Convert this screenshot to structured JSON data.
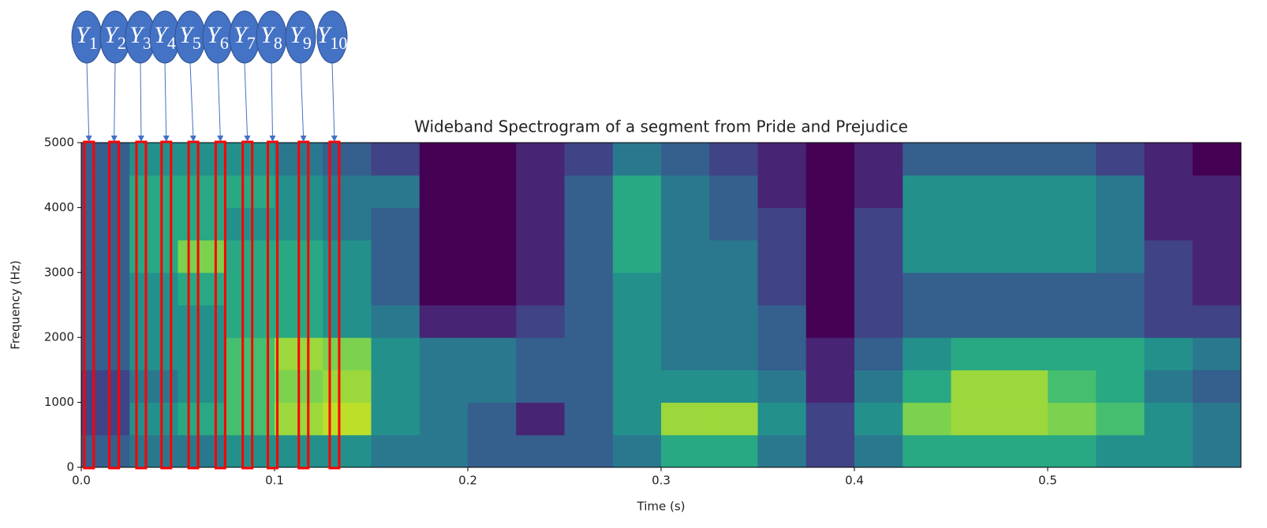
{
  "chart_data": {
    "type": "spectrogram",
    "title": "Wideband Spectrogram of a segment from Pride and Prejudice",
    "x_label": "Time (s)",
    "y_label": "Frequency (Hz)",
    "xlim": [
      0,
      0.6
    ],
    "ylim": [
      0,
      5000
    ],
    "xticks": [
      {
        "value": 0,
        "label": "0.0"
      },
      0.1,
      0.2,
      0.3,
      0.4,
      0.5
    ],
    "yticks": [
      0,
      1000,
      2000,
      3000,
      4000,
      5000
    ],
    "colormap": "viridis",
    "clim": [
      0,
      1
    ],
    "time_bins": [
      0,
      0.025,
      0.05,
      0.075,
      0.1,
      0.125,
      0.15,
      0.175,
      0.2,
      0.225,
      0.25,
      0.275,
      0.3,
      0.325,
      0.35,
      0.375,
      0.4,
      0.425,
      0.45,
      0.475,
      0.5,
      0.525,
      0.55,
      0.575,
      0.6
    ],
    "freq_bins": [
      0,
      500,
      1000,
      1500,
      2000,
      2500,
      3000,
      3500,
      4000,
      4500,
      5000
    ],
    "intensity": [
      [
        0.3,
        0.4,
        0.4,
        0.5,
        0.5,
        0.5,
        0.4,
        0.4,
        0.3,
        0.3,
        0.3,
        0.4,
        0.6,
        0.6,
        0.4,
        0.2,
        0.4,
        0.6,
        0.6,
        0.6,
        0.6,
        0.5,
        0.5,
        0.4
      ],
      [
        0.2,
        0.5,
        0.6,
        0.7,
        0.85,
        0.9,
        0.5,
        0.4,
        0.3,
        0.1,
        0.3,
        0.5,
        0.85,
        0.85,
        0.5,
        0.2,
        0.5,
        0.8,
        0.85,
        0.85,
        0.8,
        0.7,
        0.5,
        0.4
      ],
      [
        0.2,
        0.4,
        0.5,
        0.7,
        0.8,
        0.85,
        0.5,
        0.4,
        0.4,
        0.3,
        0.3,
        0.5,
        0.5,
        0.5,
        0.4,
        0.1,
        0.4,
        0.6,
        0.85,
        0.85,
        0.7,
        0.6,
        0.4,
        0.3
      ],
      [
        0.3,
        0.5,
        0.5,
        0.7,
        0.85,
        0.8,
        0.5,
        0.4,
        0.4,
        0.3,
        0.3,
        0.5,
        0.4,
        0.4,
        0.3,
        0.1,
        0.3,
        0.5,
        0.6,
        0.6,
        0.6,
        0.6,
        0.5,
        0.4
      ],
      [
        0.3,
        0.5,
        0.5,
        0.6,
        0.6,
        0.5,
        0.4,
        0.1,
        0.1,
        0.2,
        0.3,
        0.5,
        0.4,
        0.4,
        0.3,
        0.0,
        0.2,
        0.3,
        0.3,
        0.3,
        0.3,
        0.3,
        0.2,
        0.2
      ],
      [
        0.3,
        0.5,
        0.6,
        0.6,
        0.6,
        0.5,
        0.3,
        0.0,
        0.0,
        0.1,
        0.3,
        0.5,
        0.4,
        0.4,
        0.2,
        0.0,
        0.2,
        0.3,
        0.3,
        0.3,
        0.3,
        0.3,
        0.2,
        0.1
      ],
      [
        0.3,
        0.6,
        0.8,
        0.6,
        0.6,
        0.5,
        0.3,
        0.0,
        0.0,
        0.1,
        0.3,
        0.6,
        0.4,
        0.4,
        0.2,
        0.0,
        0.2,
        0.5,
        0.5,
        0.5,
        0.5,
        0.4,
        0.2,
        0.1
      ],
      [
        0.3,
        0.6,
        0.6,
        0.5,
        0.5,
        0.4,
        0.3,
        0.0,
        0.0,
        0.1,
        0.3,
        0.6,
        0.4,
        0.3,
        0.2,
        0.0,
        0.2,
        0.5,
        0.5,
        0.5,
        0.5,
        0.4,
        0.1,
        0.1
      ],
      [
        0.3,
        0.6,
        0.6,
        0.6,
        0.5,
        0.4,
        0.4,
        0.0,
        0.0,
        0.1,
        0.3,
        0.6,
        0.4,
        0.3,
        0.1,
        0.0,
        0.1,
        0.5,
        0.5,
        0.5,
        0.5,
        0.4,
        0.1,
        0.1
      ],
      [
        0.3,
        0.5,
        0.5,
        0.5,
        0.4,
        0.3,
        0.2,
        0.0,
        0.0,
        0.1,
        0.2,
        0.4,
        0.3,
        0.2,
        0.1,
        0.0,
        0.1,
        0.3,
        0.3,
        0.3,
        0.3,
        0.2,
        0.1,
        0.0
      ]
    ],
    "frame_color": "#ff0000",
    "annotation_color": "#4472c4",
    "frames": [
      {
        "symbol": "Y",
        "index": "1",
        "time": 0.004
      },
      {
        "symbol": "Y",
        "index": "2",
        "time": 0.017
      },
      {
        "symbol": "Y",
        "index": "3",
        "time": 0.031
      },
      {
        "symbol": "Y",
        "index": "4",
        "time": 0.044
      },
      {
        "symbol": "Y",
        "index": "5",
        "time": 0.058
      },
      {
        "symbol": "Y",
        "index": "6",
        "time": 0.072
      },
      {
        "symbol": "Y",
        "index": "7",
        "time": 0.086
      },
      {
        "symbol": "Y",
        "index": "8",
        "time": 0.099
      },
      {
        "symbol": "Y",
        "index": "9",
        "time": 0.115
      },
      {
        "symbol": "Y",
        "index": "10",
        "time": 0.131
      }
    ]
  }
}
